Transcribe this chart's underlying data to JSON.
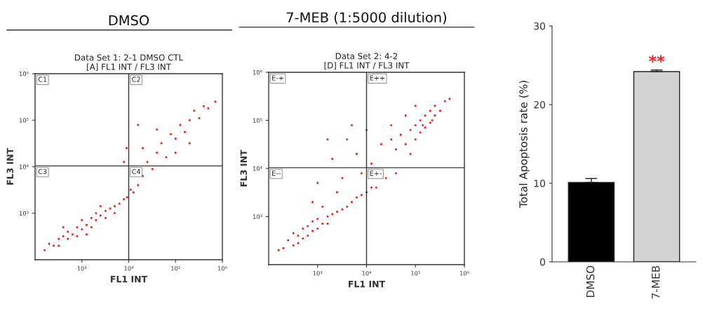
{
  "chart_data": [
    {
      "type": "scatter",
      "title": "DMSO",
      "subtitle": "Data Set 1: 2-1 DMSO CTL\n[A] FL1 INT / FL3 INT",
      "xlabel": "FL1 INT",
      "ylabel": "FL3 INT",
      "log": "xy",
      "xlim": [
        100,
        1000000
      ],
      "ylim": [
        100,
        1000000
      ],
      "xticks": [
        {
          "value": 1000,
          "label": "10³"
        },
        {
          "value": 10000,
          "label": "10⁴"
        },
        {
          "value": 100000,
          "label": "10⁵"
        },
        {
          "value": 1000000,
          "label": "10⁶"
        }
      ],
      "yticks": [
        {
          "value": 1000,
          "label": "10³"
        },
        {
          "value": 10000,
          "label": "10⁴"
        },
        {
          "value": 100000,
          "label": "10⁵"
        },
        {
          "value": 1000000,
          "label": "10⁶"
        }
      ],
      "marker": "circle",
      "grid": false,
      "ref_lines": [
        {
          "axis": "x",
          "value": 10000,
          "color": "#333333"
        },
        {
          "axis": "y",
          "value": 10400,
          "color": "#333333"
        }
      ],
      "annotations": [
        "C1",
        "C2",
        "C3",
        "C4"
      ],
      "series": [
        {
          "color": "#ff1a1a",
          "x": [
            160,
            200,
            250,
            320,
            320,
            400,
            500,
            500,
            630,
            790,
            790,
            1000,
            1000,
            1260,
            1600,
            1600,
            2000,
            2000,
            2500,
            3200,
            3200,
            4000,
            5000,
            5000,
            6300,
            7900,
            9300,
            11000,
            12600,
            15800,
            400,
            1260,
            2500,
            20000,
            25000,
            32000,
            40000,
            20000,
            50000,
            63000,
            79000,
            100000,
            126000,
            158000,
            200000,
            250000,
            320000,
            400000,
            500000,
            710000,
            9000,
            15800,
            7900,
            100000,
            200000,
            40000
          ],
          "values": [
            160,
            220,
            200,
            280,
            200,
            320,
            280,
            400,
            350,
            500,
            320,
            450,
            710,
            560,
            790,
            500,
            710,
            1000,
            890,
            1120,
            790,
            1260,
            1410,
            1000,
            1600,
            2000,
            2200,
            3200,
            2800,
            4000,
            500,
            350,
            1410,
            6300,
            12600,
            8900,
            20000,
            25000,
            32000,
            16000,
            50000,
            40000,
            79000,
            56000,
            100000,
            160000,
            110000,
            200000,
            180000,
            250000,
            25000,
            79000,
            12600,
            20000,
            32000,
            63000
          ]
        }
      ]
    },
    {
      "type": "scatter",
      "title": "7-MEB (1:5000 dilution)",
      "subtitle": "Data Set 2: 4-2\n[D] FL1 INT / FL3 INT",
      "xlabel": "FL1 INT",
      "ylabel": "FL3 INT",
      "log": "xy",
      "xlim": [
        100,
        1000000
      ],
      "ylim": [
        100,
        1000000
      ],
      "xticks": [
        {
          "value": 1000,
          "label": "10³"
        },
        {
          "value": 10000,
          "label": "10⁴"
        },
        {
          "value": 100000,
          "label": "10⁵"
        },
        {
          "value": 1000000,
          "label": "10⁶"
        }
      ],
      "yticks": [
        {
          "value": 1000,
          "label": "10³"
        },
        {
          "value": 10000,
          "label": "10⁴"
        },
        {
          "value": 100000,
          "label": "10⁵"
        },
        {
          "value": 1000000,
          "label": "10⁶"
        }
      ],
      "marker": "circle",
      "grid": false,
      "ref_lines": [
        {
          "axis": "x",
          "value": 10000,
          "color": "#333333"
        },
        {
          "axis": "y",
          "value": 10400,
          "color": "#333333"
        }
      ],
      "annotations": [
        "E-+",
        "E++",
        "E--",
        "E+-"
      ],
      "series": [
        {
          "color": "#ff1a1a",
          "x": [
            200,
            250,
            320,
            400,
            400,
            500,
            500,
            630,
            630,
            790,
            790,
            1000,
            1000,
            1260,
            1600,
            1600,
            2000,
            2500,
            3200,
            4000,
            5000,
            6300,
            7900,
            10000,
            12600,
            320,
            1260,
            160,
            1000,
            2000,
            3200,
            4000,
            6300,
            10000,
            12600,
            7900,
            20000,
            25000,
            1600,
            32000,
            15800,
            2500,
            40000,
            5000,
            790,
            40000,
            50000,
            63000,
            79000,
            100000,
            100000,
            126000,
            126000,
            158000,
            158000,
            200000,
            200000,
            250000,
            250000,
            320000,
            400000,
            63000,
            100000,
            500000,
            32000,
            79000,
            220000,
            141000
          ],
          "values": [
            220,
            320,
            250,
            400,
            280,
            350,
            560,
            400,
            630,
            500,
            790,
            560,
            890,
            710,
            1000,
            710,
            1120,
            1260,
            1410,
            1600,
            2000,
            2500,
            2800,
            3200,
            4000,
            450,
            1600,
            200,
            5000,
            15800,
            6300,
            40000,
            20000,
            63000,
            12600,
            7900,
            32000,
            6300,
            40000,
            79000,
            4000,
            3200,
            7900,
            79000,
            2000,
            25000,
            50000,
            32000,
            63000,
            40000,
            79000,
            56000,
            100000,
            71000,
            126000,
            89000,
            158000,
            126000,
            200000,
            158000,
            250000,
            126000,
            200000,
            280000,
            40000,
            20000,
            100000,
            79000
          ]
        }
      ]
    },
    {
      "type": "bar",
      "ylabel": "Total Apoptosis rate (%)",
      "categories": [
        "DMSO",
        "7-MEB"
      ],
      "values": [
        10.1,
        24.2
      ],
      "errors": [
        0.5,
        0.2
      ],
      "colors": [
        "#000000",
        "#d3d3d3"
      ],
      "ylim": [
        0,
        30
      ],
      "yticks": [
        0,
        10,
        20,
        30
      ],
      "grid": false,
      "annotations": [
        {
          "text": "**",
          "x": "7-MEB",
          "y": 24.4
        }
      ]
    }
  ]
}
